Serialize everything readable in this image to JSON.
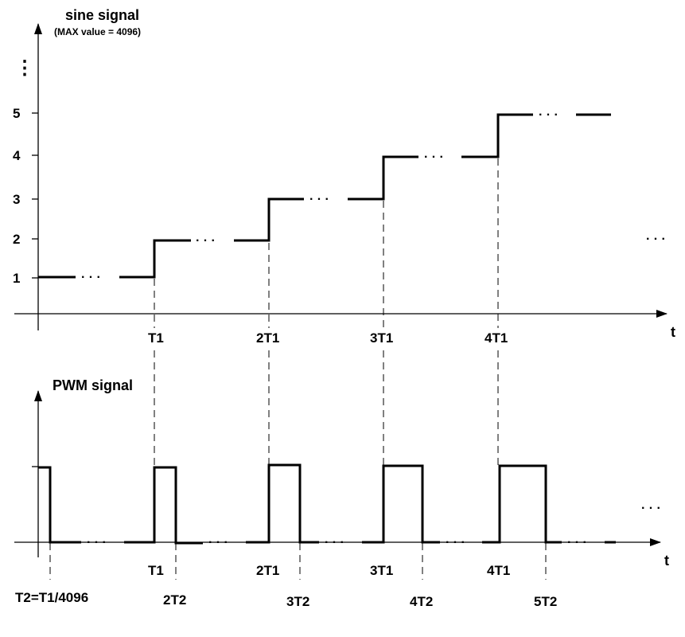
{
  "top_plot": {
    "title": "sine signal",
    "subtitle": "(MAX value = 4096)",
    "x_axis_label": "t",
    "vertical_ellipsis": "⋮",
    "y_tick_labels": [
      "1",
      "2",
      "3",
      "4",
      "5"
    ],
    "x_tick_labels": [
      "T1",
      "2T1",
      "3T1",
      "4T1"
    ],
    "trailing_ellipsis": "· · ·",
    "step_ellipsis": "· · ·"
  },
  "bottom_plot": {
    "title": "PWM signal",
    "x_axis_label": "t",
    "t1_tick_labels": [
      "T1",
      "2T1",
      "3T1",
      "4T1"
    ],
    "t2_tick_labels": [
      "T2=T1/4096",
      "2T2",
      "3T2",
      "4T2",
      "5T2"
    ],
    "trailing_ellipsis": "· · ·",
    "gap_ellipsis": "· · ·"
  }
}
